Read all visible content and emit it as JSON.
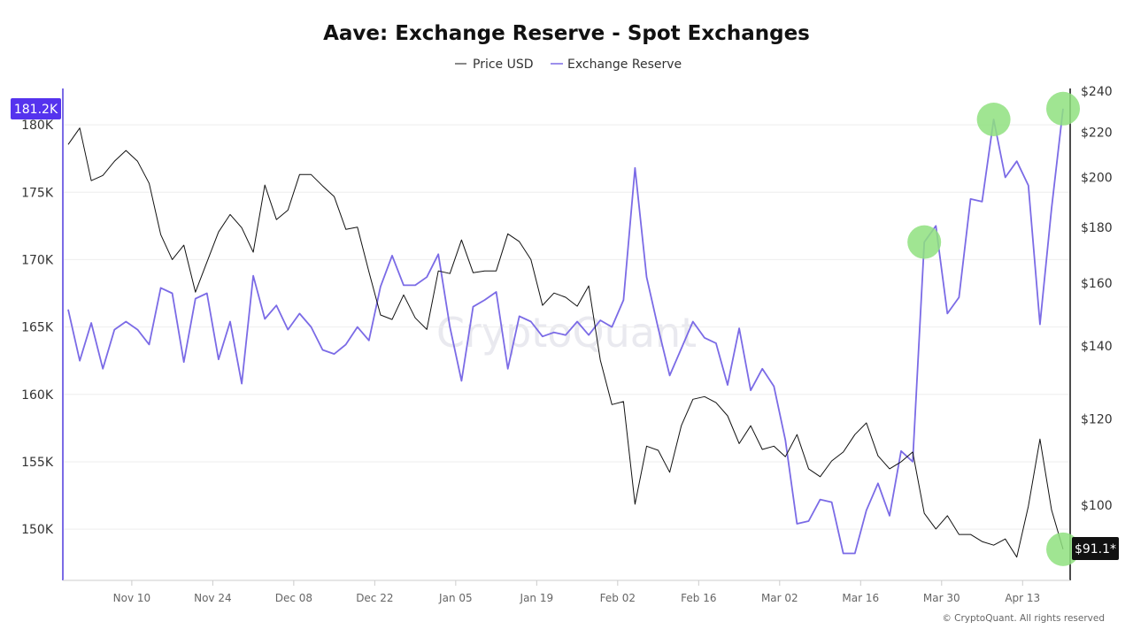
{
  "chart_data": {
    "type": "line",
    "title": "Aave: Exchange Reserve - Spot Exchanges",
    "legend": {
      "placement": "top-center",
      "entries": [
        "Price USD",
        "Exchange Reserve"
      ]
    },
    "x": [
      "Oct 30",
      "Nov 01",
      "Nov 03",
      "Nov 05",
      "Nov 07",
      "Nov 09",
      "Nov 11",
      "Nov 13",
      "Nov 15",
      "Nov 17",
      "Nov 19",
      "Nov 21",
      "Nov 23",
      "Nov 25",
      "Nov 27",
      "Nov 29",
      "Dec 01",
      "Dec 03",
      "Dec 05",
      "Dec 07",
      "Dec 09",
      "Dec 11",
      "Dec 13",
      "Dec 15",
      "Dec 17",
      "Dec 19",
      "Dec 21",
      "Dec 23",
      "Dec 25",
      "Dec 27",
      "Dec 29",
      "Dec 31",
      "Jan 02",
      "Jan 04",
      "Jan 06",
      "Jan 08",
      "Jan 10",
      "Jan 12",
      "Jan 14",
      "Jan 16",
      "Jan 18",
      "Jan 20",
      "Jan 22",
      "Jan 24",
      "Jan 26",
      "Jan 28",
      "Jan 30",
      "Feb 01",
      "Feb 03",
      "Feb 05",
      "Feb 07",
      "Feb 09",
      "Feb 11",
      "Feb 13",
      "Feb 15",
      "Feb 17",
      "Feb 19",
      "Feb 21",
      "Feb 23",
      "Feb 25",
      "Feb 27",
      "Mar 01",
      "Mar 03",
      "Mar 05",
      "Mar 07",
      "Mar 09",
      "Mar 11",
      "Mar 13",
      "Mar 15",
      "Mar 17",
      "Mar 19",
      "Mar 21",
      "Mar 23",
      "Mar 25",
      "Mar 27",
      "Mar 29",
      "Mar 31",
      "Apr 02",
      "Apr 04",
      "Apr 06",
      "Apr 08",
      "Apr 10",
      "Apr 12",
      "Apr 14",
      "Apr 16",
      "Apr 18",
      "Apr 20"
    ],
    "x_ticks": [
      "Nov 10",
      "Nov 24",
      "Dec 08",
      "Dec 22",
      "Jan 05",
      "Jan 19",
      "Feb 02",
      "Feb 16",
      "Mar 02",
      "Mar 16",
      "Mar 30",
      "Apr 13"
    ],
    "series": [
      {
        "name": "Price USD",
        "axis": "right",
        "color": "#111111",
        "values": [
          214.4,
          222.0,
          198.6,
          200.8,
          206.9,
          211.7,
          206.9,
          197.5,
          177.2,
          168.1,
          173.3,
          156.9,
          167.2,
          178.2,
          184.9,
          179.8,
          170.7,
          196.8,
          182.9,
          186.6,
          201.2,
          201.2,
          196.4,
          192.0,
          179.2,
          180.0,
          163.8,
          149.5,
          148.1,
          156.0,
          148.6,
          145.0,
          164.1,
          163.2,
          175.2,
          163.5,
          164.1,
          164.1,
          177.5,
          174.6,
          168.1,
          152.6,
          156.6,
          155.2,
          152.3,
          159.0,
          135.9,
          123.7,
          124.5,
          100.2,
          113.3,
          112.3,
          107.2,
          118.3,
          125.1,
          125.8,
          124.2,
          120.8,
          113.9,
          118.3,
          112.5,
          113.3,
          110.8,
          116.1,
          108.0,
          106.2,
          109.8,
          111.9,
          116.1,
          119.0,
          111.0,
          108.0,
          109.6,
          111.9,
          98.3,
          95.1,
          97.8,
          94.0,
          94.0,
          92.6,
          91.9,
          93.1,
          89.6,
          99.8,
          115.0,
          99.0,
          91.1
        ]
      },
      {
        "name": "Exchange Reserve",
        "axis": "left",
        "color": "#7b6be6",
        "values": [
          166.3,
          162.5,
          165.3,
          161.9,
          164.8,
          165.4,
          164.8,
          163.7,
          167.9,
          167.5,
          162.4,
          167.1,
          167.5,
          162.6,
          165.4,
          160.8,
          168.8,
          165.6,
          166.6,
          164.8,
          166.0,
          165.0,
          163.3,
          163.0,
          163.7,
          165.0,
          164.0,
          168.0,
          170.3,
          168.1,
          168.1,
          168.7,
          170.4,
          165.0,
          161.0,
          166.5,
          167.0,
          167.6,
          161.9,
          165.8,
          165.4,
          164.3,
          164.6,
          164.4,
          165.4,
          164.4,
          165.5,
          165.0,
          167.0,
          176.8,
          168.7,
          164.9,
          161.4,
          163.4,
          165.4,
          164.2,
          163.8,
          160.7,
          164.9,
          160.3,
          161.9,
          160.6,
          156.6,
          150.4,
          150.6,
          152.2,
          152.0,
          148.2,
          148.2,
          151.4,
          153.4,
          151.0,
          155.8,
          155.0,
          171.3,
          172.5,
          166.0,
          167.2,
          174.5,
          174.3,
          180.4,
          176.1,
          177.3,
          175.5,
          165.2,
          173.8,
          181.2
        ]
      }
    ],
    "left_axis": {
      "unit": "K",
      "ticks": [
        "150K",
        "155K",
        "160K",
        "165K",
        "170K",
        "175K",
        "180K"
      ],
      "tick_values": [
        150,
        155,
        160,
        165,
        170,
        175,
        180
      ],
      "range": [
        146.2,
        182.5
      ],
      "scale": "linear"
    },
    "right_axis": {
      "ticks": [
        "$100",
        "$120",
        "$140",
        "$160",
        "$180",
        "$200",
        "$220",
        "$240"
      ],
      "tick_values": [
        100,
        120,
        140,
        160,
        180,
        200,
        220,
        240
      ],
      "range": [
        85.3,
        240
      ],
      "scale": "log"
    },
    "grid": true,
    "last_value_badges": {
      "left": "181.2K",
      "right": "$91.1*",
      "left_color": "#5533ee",
      "right_color": "#111111"
    },
    "highlights": [
      {
        "series": "Exchange Reserve",
        "x": "Mar 27"
      },
      {
        "series": "Exchange Reserve",
        "x": "Apr 08"
      },
      {
        "series": "Exchange Reserve",
        "x": "Apr 20"
      },
      {
        "series": "Price USD",
        "x": "Apr 20"
      }
    ],
    "highlight_color": "#8fe07f"
  },
  "watermark": "CryptoQuant",
  "copyright": "© CryptoQuant. All rights reserved"
}
